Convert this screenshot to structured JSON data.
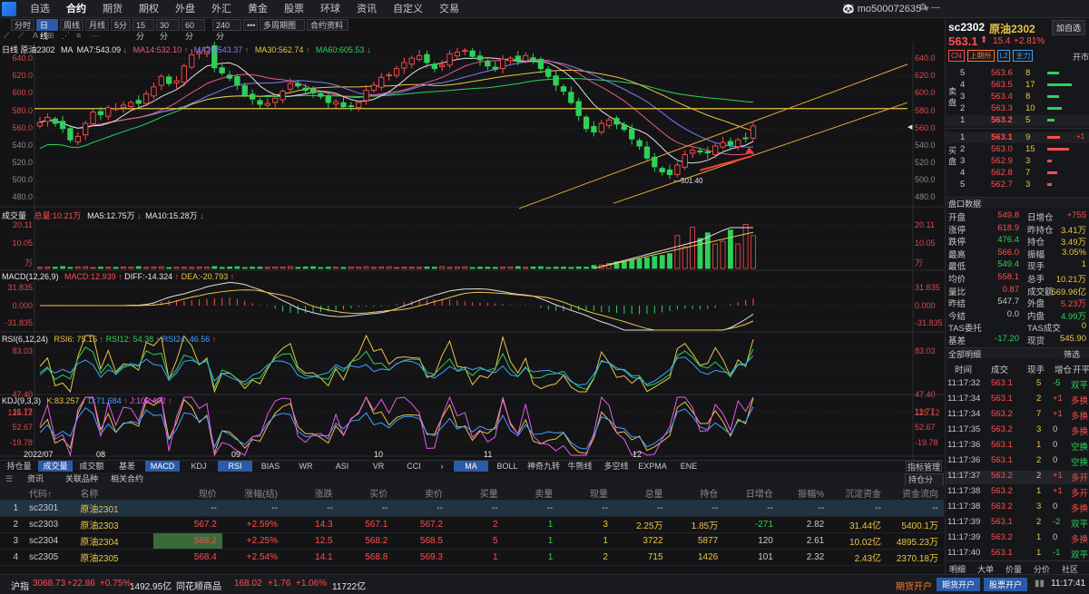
{
  "menu": [
    "自选",
    "合约",
    "期货",
    "期权",
    "外盘",
    "外汇",
    "黄金",
    "股票",
    "环球",
    "资讯",
    "自定义",
    "交易"
  ],
  "user": "mo500072635",
  "periods": [
    "分时",
    "日线",
    "周线",
    "月线",
    "5分",
    "15分",
    "30分",
    "60分",
    "240分",
    "•••",
    "多周期图",
    "合约资料"
  ],
  "main_label": {
    "name": "日线 原油2302",
    "ma": "MA",
    "ma7": "MA7:543.09",
    "ma14": "MA14:532.10",
    "ma20": "MA20:543.37",
    "ma30": "MA30:562.74",
    "ma60": "MA60:605.53"
  },
  "price_axis": [
    "640.0",
    "620.0",
    "600.0",
    "580.0",
    "560.0",
    "540.0",
    "520.0",
    "500.0",
    "480.0"
  ],
  "low_mark": "501.40",
  "vol_label": {
    "name": "成交量",
    "total": "总量:10.21万",
    "ma5": "MA5:12.75万",
    "ma10": "MA10:15.28万"
  },
  "vol_axis": [
    "20.11",
    "10.05",
    "万"
  ],
  "macd_label": {
    "name": "MACD(12,26,9)",
    "macd": "MACD:12.939",
    "diff": "DIFF:-14.324",
    "dea": "DEA:-20.793"
  },
  "macd_axis": [
    "31.835",
    "0.000",
    "-31.835"
  ],
  "rsi_label": {
    "name": "RSI(6,12,24)",
    "r6": "RSI6: 75.15",
    "r12": "RSI12: 54.38",
    "r24": "RSI24: 46.56"
  },
  "rsi_axis": [
    "83.03",
    "47.40",
    "11.77"
  ],
  "kdj_label": {
    "name": "KDJ(9,3,3)",
    "k": "K:83.257",
    "d": "D:71.684",
    "j": "J:106.402"
  },
  "kdj_axis": [
    "125.12",
    "52.67",
    "-19.78"
  ],
  "months": [
    "2022/07",
    "08",
    "09",
    "10",
    "11",
    "12"
  ],
  "ind_tabs": [
    "持仓量",
    "成交量",
    "成交额",
    "基差",
    "MACD",
    "KDJ",
    "RSI",
    "BIAS",
    "WR",
    "ASI",
    "VR",
    "CCI",
    "›",
    "MA",
    "BOLL",
    "神奇九转",
    "牛熊线",
    "多空线",
    "EXPMA",
    "ENE"
  ],
  "ind_manage": "指标管理",
  "bottom_tabs": [
    "资讯",
    "关联品种",
    "相关合约"
  ],
  "hold_analysis": "持仓分析",
  "table": {
    "headers": [
      "",
      "代码↑",
      "名称",
      "现价",
      "涨幅(结)",
      "涨跌",
      "买价",
      "卖价",
      "买量",
      "卖量",
      "现量",
      "总量",
      "持仓",
      "日增仓",
      "振幅%",
      "沉淀资金",
      "资金流向"
    ],
    "rows": [
      [
        "1",
        "sc2301",
        "原油2301",
        "--",
        "--",
        "--",
        "--",
        "--",
        "--",
        "--",
        "--",
        "--",
        "--",
        "--",
        "--",
        "--",
        "--"
      ],
      [
        "2",
        "sc2303",
        "原油2303",
        "567.2",
        "+2.59%",
        "14.3",
        "567.1",
        "567.2",
        "2",
        "1",
        "3",
        "2.25万",
        "1.85万",
        "-271",
        "2.82",
        "31.44亿",
        "5400.1万"
      ],
      [
        "3",
        "sc2304",
        "原油2304",
        "568.2",
        "+2.25%",
        "12.5",
        "568.2",
        "568.5",
        "5",
        "1",
        "1",
        "3722",
        "5877",
        "120",
        "2.61",
        "10.02亿",
        "4895.23万"
      ],
      [
        "4",
        "sc2305",
        "原油2305",
        "568.4",
        "+2.54%",
        "14.1",
        "568.8",
        "569.3",
        "1",
        "1",
        "2",
        "715",
        "1426",
        "101",
        "2.32",
        "2.43亿",
        "2370.18万"
      ]
    ]
  },
  "status": {
    "idx": "沪指",
    "val": "3068.73",
    "chg": "+22.86",
    "pct": "+0.75%",
    "amt": "1492.95亿",
    "idx2": "同花顺商品",
    "val2": "168.02",
    "chg2": "+1.76",
    "pct2": "+1.06%",
    "amt2": "11722亿",
    "open1": "期货开户",
    "open2": "期货开户",
    "open3": "股票开户",
    "time": "11:17:41"
  },
  "right": {
    "code": "sc2302",
    "name": "原油2302",
    "add": "加自选",
    "price": "563.1",
    "chg": "15.4",
    "pct": "+2.81%",
    "tags": [
      "CN",
      "上期所",
      "L2",
      "主力"
    ],
    "kaiping": "开市",
    "asks": [
      [
        "5",
        "563.6",
        "8"
      ],
      [
        "4",
        "563.5",
        "17"
      ],
      [
        "3",
        "563.4",
        "8"
      ],
      [
        "2",
        "563.3",
        "10"
      ],
      [
        "1",
        "563.2",
        "5"
      ]
    ],
    "bids": [
      [
        "1",
        "563.1",
        "9",
        "+1"
      ],
      [
        "2",
        "563.0",
        "15"
      ],
      [
        "3",
        "562.9",
        "3"
      ],
      [
        "4",
        "562.8",
        "7"
      ],
      [
        "5",
        "562.7",
        "3"
      ]
    ],
    "ask_label": "卖盘",
    "bid_label": "买盘",
    "pankou": "盘口数据",
    "stats": [
      [
        "开盘",
        "549.8",
        "日增仓",
        "+755"
      ],
      [
        "涨停",
        "618.9",
        "昨持仓",
        "3.41万"
      ],
      [
        "跌停",
        "476.4",
        "持仓",
        "3.49万"
      ],
      [
        "最高",
        "566.0",
        "振幅",
        "3.05%"
      ],
      [
        "最低",
        "549.4",
        "现手",
        "1"
      ],
      [
        "均价",
        "558.1",
        "总手",
        "10.21万"
      ],
      [
        "量比",
        "0.87",
        "成交额",
        "569.96亿"
      ],
      [
        "昨结",
        "547.7",
        "外盘",
        "5.23万"
      ],
      [
        "今结",
        "0.0",
        "内盘",
        "4.99万"
      ],
      [
        "TAS委托",
        "",
        "TAS成交",
        "0"
      ],
      [
        "基差",
        "-17.20",
        "现货",
        "545.90"
      ]
    ],
    "ticks_hd": "全部明细",
    "filter": "筛选",
    "tick_cols": [
      "时间",
      "成交",
      "现手",
      "增仓",
      "开平"
    ],
    "ticks": [
      [
        "11:17:32",
        "563.1",
        "5",
        "-5",
        "双平"
      ],
      [
        "11:17:34",
        "563.1",
        "2",
        "+1",
        "多换"
      ],
      [
        "11:17:34",
        "563.2",
        "7",
        "+1",
        "多换"
      ],
      [
        "11:17:35",
        "563.2",
        "3",
        "0",
        "多换"
      ],
      [
        "11:17:36",
        "563.1",
        "1",
        "0",
        "空换"
      ],
      [
        "11:17:36",
        "563.1",
        "2",
        "0",
        "空换"
      ],
      [
        "11:17:37",
        "563.2",
        "2",
        "+1",
        "多开"
      ],
      [
        "11:17:38",
        "563.2",
        "1",
        "+1",
        "多开"
      ],
      [
        "11:17:38",
        "563.2",
        "3",
        "0",
        "多换"
      ],
      [
        "11:17:39",
        "563.1",
        "2",
        "-2",
        "双平"
      ],
      [
        "11:17:39",
        "563.2",
        "1",
        "0",
        "多换"
      ],
      [
        "11:17:40",
        "563.1",
        "1",
        "-1",
        "双平"
      ]
    ],
    "bottom": [
      "明细",
      "大单",
      "价量",
      "分价",
      "社区"
    ]
  },
  "chart_data": {
    "type": "candlestick",
    "series_name": "原油2302",
    "ylim": [
      470,
      660
    ],
    "last_close": 563.1,
    "low": 501.4,
    "resistance": 583,
    "closes": [
      567,
      573,
      566,
      560,
      547,
      551,
      566,
      579,
      576,
      584,
      583,
      587,
      590,
      589,
      600,
      608,
      620,
      612,
      615,
      632,
      645,
      648,
      653,
      630,
      624,
      618,
      610,
      599,
      594,
      588,
      589,
      595,
      603,
      612,
      609,
      604,
      601,
      597,
      590,
      591,
      585,
      586,
      590,
      604,
      610,
      619,
      622,
      629,
      636,
      641,
      644,
      636,
      629,
      633,
      646,
      648,
      650,
      643,
      639,
      632,
      628,
      640,
      641,
      638,
      644,
      638,
      629,
      620,
      610,
      603,
      590,
      575,
      560,
      556,
      566,
      570,
      565,
      559,
      548,
      540,
      526,
      516,
      510,
      507,
      518,
      530,
      535,
      533,
      532,
      540,
      544,
      541,
      547,
      549,
      563
    ]
  }
}
